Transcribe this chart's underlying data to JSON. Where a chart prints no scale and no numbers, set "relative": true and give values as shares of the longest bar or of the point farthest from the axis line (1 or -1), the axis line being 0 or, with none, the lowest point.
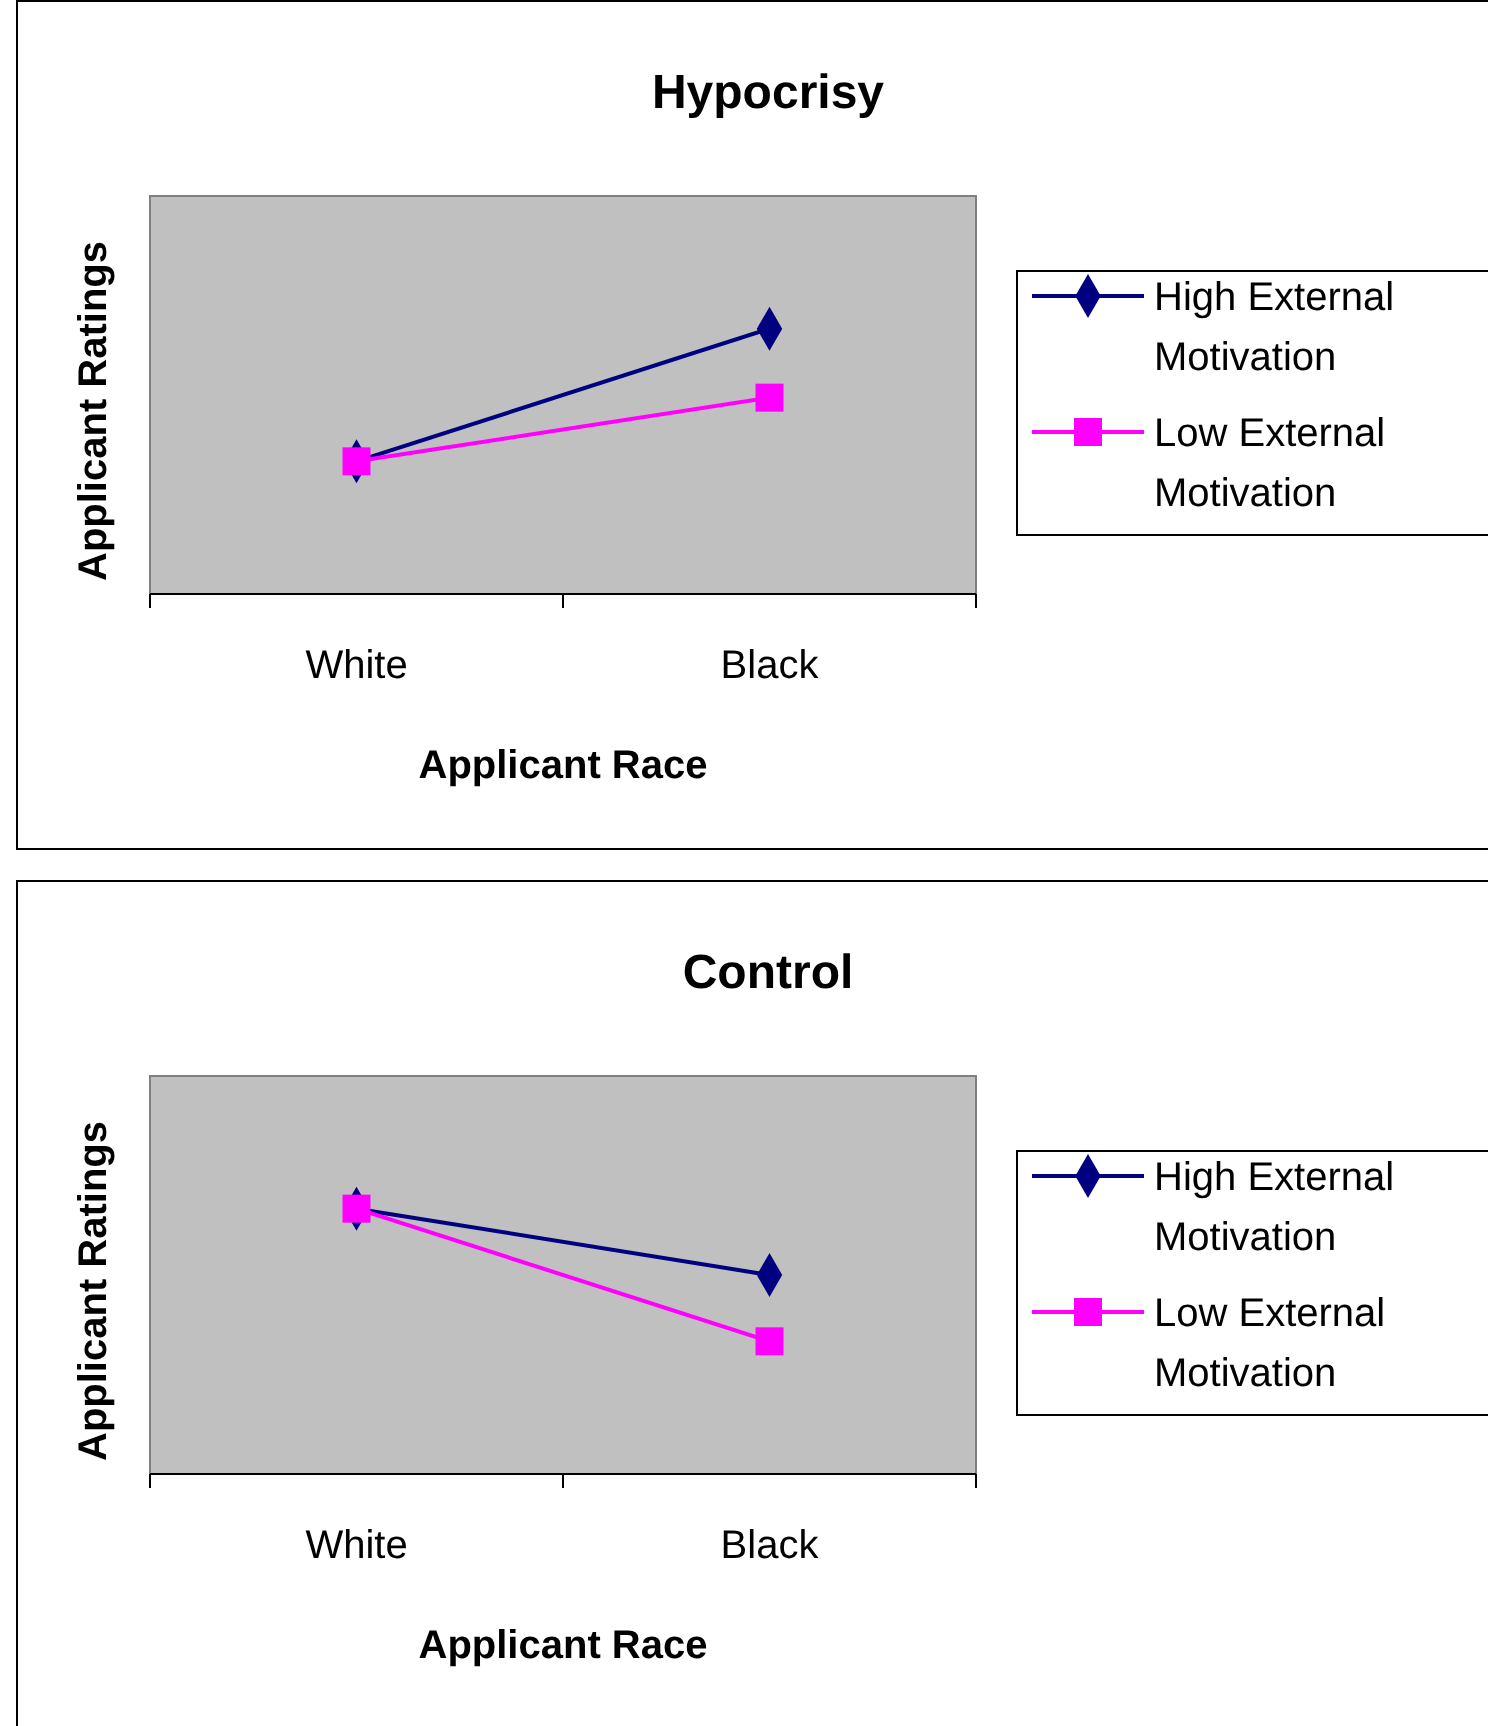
{
  "chart_data": [
    {
      "type": "line",
      "title": "Hypocrisy",
      "xlabel": "Applicant Race",
      "ylabel": "Applicant Ratings",
      "categories": [
        "White",
        "Black"
      ],
      "relative": true,
      "legend": "right",
      "series": [
        {
          "name": "High External Motivation",
          "color": "#000080",
          "marker": "diamond",
          "values": [
            0.5,
            1
          ]
        },
        {
          "name": "Low External Motivation",
          "color": "#ff00ff",
          "marker": "square",
          "values": [
            0.5,
            0.74
          ]
        }
      ]
    },
    {
      "type": "line",
      "title": "Control",
      "xlabel": "Applicant Race",
      "ylabel": "Applicant Ratings",
      "categories": [
        "White",
        "Black"
      ],
      "relative": true,
      "legend": "right",
      "series": [
        {
          "name": "High External Motivation",
          "color": "#000080",
          "marker": "diamond",
          "values": [
            1,
            0.75
          ]
        },
        {
          "name": "Low External Motivation",
          "color": "#ff00ff",
          "marker": "square",
          "values": [
            1,
            0.5
          ]
        }
      ]
    }
  ]
}
